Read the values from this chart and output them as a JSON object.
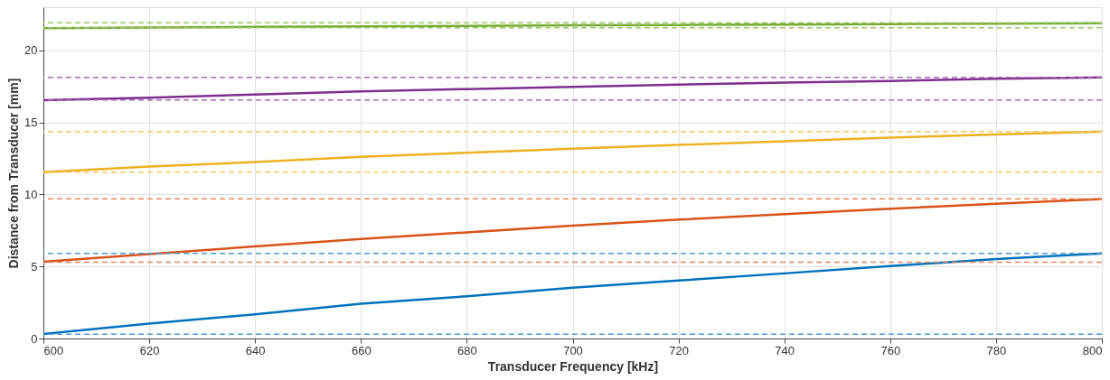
{
  "chart_data": {
    "type": "line",
    "xlabel": "Transducer Frequency [kHz]",
    "ylabel": "Distance from Transducer [mm]",
    "x": [
      600,
      620,
      640,
      660,
      680,
      700,
      720,
      740,
      760,
      780,
      800
    ],
    "series": [
      {
        "color": "#0072bd",
        "values": [
          0.31,
          1.03,
          1.68,
          2.41,
          2.93,
          3.52,
          4.02,
          4.52,
          5.03,
          5.51,
          5.9
        ]
      },
      {
        "color": "#d95319",
        "values": [
          5.32,
          5.86,
          6.39,
          6.91,
          7.37,
          7.83,
          8.25,
          8.63,
          9.01,
          9.36,
          9.68
        ]
      },
      {
        "color": "#edb120",
        "values": [
          11.54,
          11.94,
          12.25,
          12.61,
          12.9,
          13.17,
          13.44,
          13.69,
          13.95,
          14.16,
          14.37
        ]
      },
      {
        "color": "#7e2f8e",
        "values": [
          16.54,
          16.71,
          16.94,
          17.15,
          17.32,
          17.47,
          17.63,
          17.76,
          17.88,
          18.03,
          18.12
        ]
      },
      {
        "color": "#77ac30",
        "values": [
          21.55,
          21.59,
          21.63,
          21.67,
          21.7,
          21.74,
          21.77,
          21.8,
          21.83,
          21.86,
          21.88
        ]
      }
    ],
    "ref_lines": [
      {
        "axis": "y",
        "value": 0.3,
        "color": "#4a9ad3",
        "line_style": "dashed"
      },
      {
        "axis": "y",
        "value": 5.9,
        "color": "#4a9ad3",
        "line_style": "dashed"
      },
      {
        "axis": "y",
        "value": 5.3,
        "color": "#e5875e",
        "line_style": "dashed"
      },
      {
        "axis": "y",
        "value": 9.7,
        "color": "#e5875e",
        "line_style": "dashed"
      },
      {
        "axis": "y",
        "value": 11.55,
        "color": "#f2c765",
        "line_style": "dashed"
      },
      {
        "axis": "y",
        "value": 14.37,
        "color": "#f2c765",
        "line_style": "dashed"
      },
      {
        "axis": "y",
        "value": 16.56,
        "color": "#a56db0",
        "line_style": "dashed"
      },
      {
        "axis": "y",
        "value": 18.12,
        "color": "#a56db0",
        "line_style": "dashed"
      },
      {
        "axis": "y",
        "value": 21.57,
        "color": "#9bc66a",
        "line_style": "dashed"
      },
      {
        "axis": "y",
        "value": 21.92,
        "color": "#9bc66a",
        "line_style": "dashed"
      }
    ],
    "xlim": [
      600,
      800
    ],
    "ylim": [
      0,
      23
    ],
    "xticks": [
      600,
      620,
      640,
      660,
      680,
      700,
      720,
      740,
      760,
      780,
      800
    ],
    "yticks": [
      0,
      5,
      10,
      15,
      20
    ],
    "grid": true,
    "marker": "none",
    "line_style": "solid"
  }
}
